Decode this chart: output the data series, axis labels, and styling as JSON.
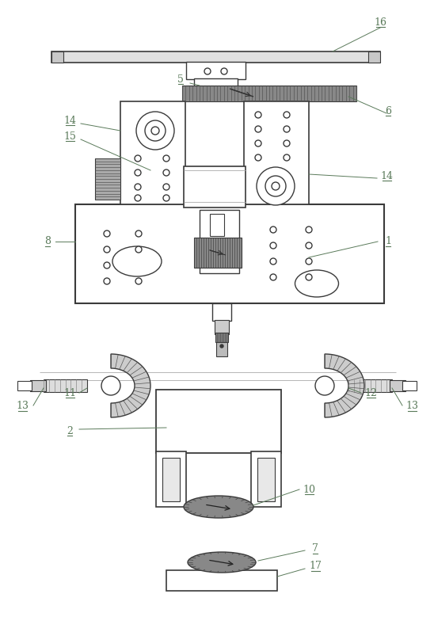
{
  "bg_color": "#ffffff",
  "line_color": "#3a3a3a",
  "label_color": "#5a7a5a",
  "figsize": [
    5.48,
    7.98
  ],
  "dpi": 100
}
